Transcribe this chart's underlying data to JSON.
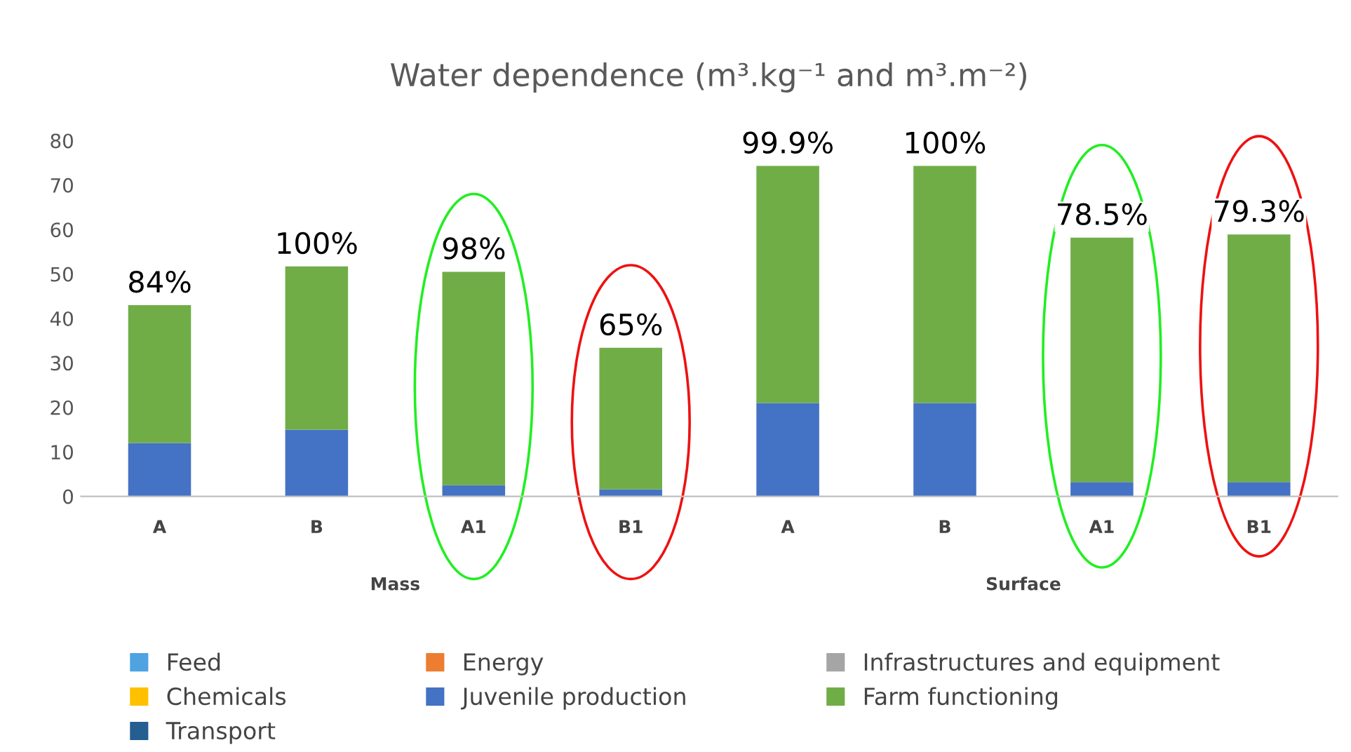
{
  "chart_data": {
    "type": "bar",
    "title": "Water dependence (m³.kg⁻¹ and m³.m⁻²)",
    "stacked": true,
    "categories": [
      "A",
      "B",
      "A1",
      "B1",
      "A",
      "B",
      "A1",
      "B1"
    ],
    "series": [
      {
        "name": "Feed",
        "color": "#4fa3e0",
        "values": [
          0,
          0,
          0,
          0,
          0,
          0,
          0,
          0
        ]
      },
      {
        "name": "Energy",
        "color": "#ed7d31",
        "values": [
          0,
          0,
          0,
          0,
          0,
          0,
          0,
          0
        ]
      },
      {
        "name": "Infrastructures and equipment",
        "color": "#a5a5a5",
        "values": [
          0,
          0,
          0,
          0,
          0,
          0,
          0,
          0
        ]
      },
      {
        "name": "Chemicals",
        "color": "#ffc000",
        "values": [
          0,
          0,
          0,
          0,
          0,
          0,
          0,
          0
        ]
      },
      {
        "name": "Juvenile production",
        "color": "#4472c4",
        "values": [
          12,
          15,
          2.5,
          1.6,
          21,
          21,
          3.2,
          3.2
        ]
      },
      {
        "name": "Farm functioning",
        "color": "#70ad47",
        "values": [
          31,
          36.7,
          48,
          31.8,
          53.3,
          53.3,
          55,
          55.7
        ]
      },
      {
        "name": "Transport",
        "color": "#255e91",
        "values": [
          0,
          0,
          0,
          0,
          0,
          0,
          0,
          0
        ]
      }
    ],
    "annotations": [
      "84%",
      "100%",
      "98%",
      "65%",
      "99.9%",
      "100%",
      "78.5%",
      "79.3%",
      "Mass",
      "Surface"
    ],
    "ylim": [
      0,
      80
    ],
    "yticks": [
      0,
      10,
      20,
      30,
      40,
      50,
      60,
      70,
      80
    ],
    "grid": false,
    "legend": "bottom"
  }
}
